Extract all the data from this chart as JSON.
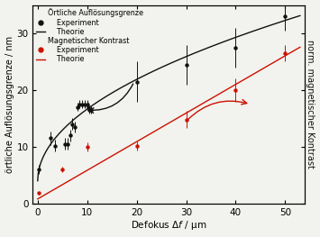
{
  "black_exp_x": [
    0.3,
    2.5,
    3.5,
    5.5,
    6.0,
    6.5,
    7.0,
    7.5,
    8.0,
    8.5,
    9.0,
    9.5,
    10.0,
    10.2,
    10.5,
    10.7,
    20.0,
    30.0,
    40.0,
    50.0
  ],
  "black_exp_y": [
    6.0,
    11.5,
    10.2,
    10.5,
    10.5,
    12.0,
    14.0,
    13.5,
    17.0,
    17.5,
    17.5,
    17.5,
    17.5,
    17.0,
    16.5,
    16.5,
    21.5,
    24.5,
    27.5,
    33.0
  ],
  "black_exp_yerr": [
    0.8,
    1.2,
    1.0,
    1.0,
    1.0,
    1.0,
    1.0,
    1.0,
    0.7,
    0.7,
    0.7,
    0.7,
    0.7,
    0.7,
    0.7,
    0.7,
    3.5,
    3.5,
    3.5,
    2.5
  ],
  "red_exp_x": [
    0.3,
    5.0,
    10.0,
    20.0,
    30.0,
    40.0,
    50.0
  ],
  "red_exp_y": [
    1.8,
    6.0,
    10.0,
    10.2,
    14.8,
    20.0,
    26.5
  ],
  "red_exp_yerr": [
    0.3,
    0.5,
    0.8,
    0.8,
    1.5,
    2.0,
    1.5
  ],
  "xlim": [
    -1,
    54
  ],
  "ylim": [
    0,
    35
  ],
  "xlabel": "Defokus Δ$f$ / µm",
  "ylabel_left": "örtliche Auflösungsgrenze / nm",
  "ylabel_right": "norm. magnetischer Kontrast",
  "bg_color": "#f2f2ee",
  "black_color": "#111111",
  "red_color": "#cc1100",
  "label_color": "#111111"
}
